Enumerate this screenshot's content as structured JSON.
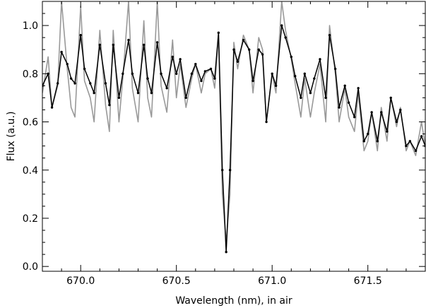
{
  "chart_data": {
    "type": "line",
    "title": "",
    "xlabel": "Wavelength (nm), in air",
    "ylabel": "Flux (a.u.)",
    "xlim": [
      669.8,
      671.8
    ],
    "ylim": [
      -0.02,
      1.1
    ],
    "xticks": [
      670.0,
      670.5,
      671.0,
      671.5
    ],
    "xtick_labels": [
      "670.0",
      "670.5",
      "671.0",
      "671.5"
    ],
    "yticks": [
      0.0,
      0.2,
      0.4,
      0.6,
      0.8,
      1.0
    ],
    "ytick_labels": [
      "0.0",
      "0.2",
      "0.4",
      "0.6",
      "0.8",
      "1.0"
    ],
    "grid": false,
    "legend": "none",
    "series": [
      {
        "color": "#999999",
        "style": "line",
        "x": [
          669.8,
          669.83,
          669.85,
          669.88,
          669.9,
          669.93,
          669.95,
          669.97,
          670.0,
          670.02,
          670.05,
          670.07,
          670.1,
          670.13,
          670.15,
          670.17,
          670.2,
          670.22,
          670.25,
          670.27,
          670.3,
          670.33,
          670.35,
          670.37,
          670.4,
          670.42,
          670.45,
          670.48,
          670.5,
          670.52,
          670.55,
          670.58,
          670.6,
          670.63,
          670.65,
          670.68,
          670.7,
          670.72,
          670.74,
          670.76,
          670.78,
          670.8,
          670.82,
          670.85,
          670.88,
          670.9,
          670.93,
          670.95,
          670.97,
          671.0,
          671.02,
          671.05,
          671.07,
          671.1,
          671.12,
          671.15,
          671.17,
          671.2,
          671.22,
          671.25,
          671.28,
          671.3,
          671.33,
          671.35,
          671.38,
          671.4,
          671.43,
          671.45,
          671.48,
          671.5,
          671.52,
          671.55,
          671.57,
          671.6,
          671.62,
          671.65,
          671.67,
          671.7,
          671.72,
          671.75,
          671.78,
          671.8
        ],
        "y": [
          0.72,
          0.87,
          0.66,
          0.75,
          1.1,
          0.82,
          0.66,
          0.62,
          1.08,
          0.77,
          0.7,
          0.6,
          0.98,
          0.67,
          0.56,
          0.98,
          0.6,
          0.78,
          1.1,
          0.74,
          0.6,
          1.02,
          0.7,
          0.62,
          1.1,
          0.75,
          0.64,
          0.94,
          0.7,
          0.84,
          0.66,
          0.78,
          0.84,
          0.72,
          0.8,
          0.82,
          0.74,
          0.96,
          0.3,
          0.1,
          0.3,
          0.93,
          0.82,
          0.96,
          0.9,
          0.72,
          0.95,
          0.9,
          0.6,
          0.8,
          0.72,
          1.1,
          0.98,
          0.86,
          0.76,
          0.62,
          0.78,
          0.62,
          0.72,
          0.84,
          0.6,
          1.0,
          0.8,
          0.6,
          0.74,
          0.62,
          0.56,
          0.72,
          0.48,
          0.52,
          0.64,
          0.48,
          0.66,
          0.52,
          0.7,
          0.58,
          0.66,
          0.48,
          0.52,
          0.46,
          0.6,
          0.5
        ]
      },
      {
        "color": "#000000",
        "style": "line-markers",
        "x": [
          669.8,
          669.83,
          669.85,
          669.88,
          669.9,
          669.93,
          669.95,
          669.97,
          670.0,
          670.02,
          670.05,
          670.07,
          670.1,
          670.13,
          670.15,
          670.17,
          670.2,
          670.22,
          670.25,
          670.27,
          670.3,
          670.33,
          670.35,
          670.37,
          670.4,
          670.42,
          670.45,
          670.48,
          670.5,
          670.52,
          670.55,
          670.58,
          670.6,
          670.63,
          670.65,
          670.68,
          670.7,
          670.72,
          670.74,
          670.76,
          670.78,
          670.8,
          670.82,
          670.85,
          670.88,
          670.9,
          670.93,
          670.95,
          670.97,
          671.0,
          671.02,
          671.05,
          671.07,
          671.1,
          671.12,
          671.15,
          671.17,
          671.2,
          671.22,
          671.25,
          671.28,
          671.3,
          671.33,
          671.35,
          671.38,
          671.4,
          671.43,
          671.45,
          671.48,
          671.5,
          671.52,
          671.55,
          671.57,
          671.6,
          671.62,
          671.65,
          671.67,
          671.7,
          671.72,
          671.75,
          671.78,
          671.8
        ],
        "y": [
          0.75,
          0.8,
          0.66,
          0.76,
          0.89,
          0.84,
          0.78,
          0.76,
          0.96,
          0.82,
          0.76,
          0.72,
          0.92,
          0.76,
          0.67,
          0.92,
          0.7,
          0.8,
          0.94,
          0.8,
          0.72,
          0.92,
          0.78,
          0.72,
          0.93,
          0.8,
          0.74,
          0.87,
          0.8,
          0.86,
          0.7,
          0.8,
          0.84,
          0.77,
          0.81,
          0.82,
          0.78,
          0.97,
          0.4,
          0.06,
          0.4,
          0.9,
          0.85,
          0.94,
          0.9,
          0.77,
          0.9,
          0.88,
          0.6,
          0.8,
          0.75,
          1.0,
          0.95,
          0.87,
          0.79,
          0.7,
          0.8,
          0.72,
          0.78,
          0.86,
          0.7,
          0.96,
          0.82,
          0.66,
          0.75,
          0.68,
          0.62,
          0.74,
          0.52,
          0.55,
          0.64,
          0.52,
          0.64,
          0.56,
          0.7,
          0.6,
          0.65,
          0.5,
          0.52,
          0.48,
          0.54,
          0.5
        ]
      }
    ]
  }
}
